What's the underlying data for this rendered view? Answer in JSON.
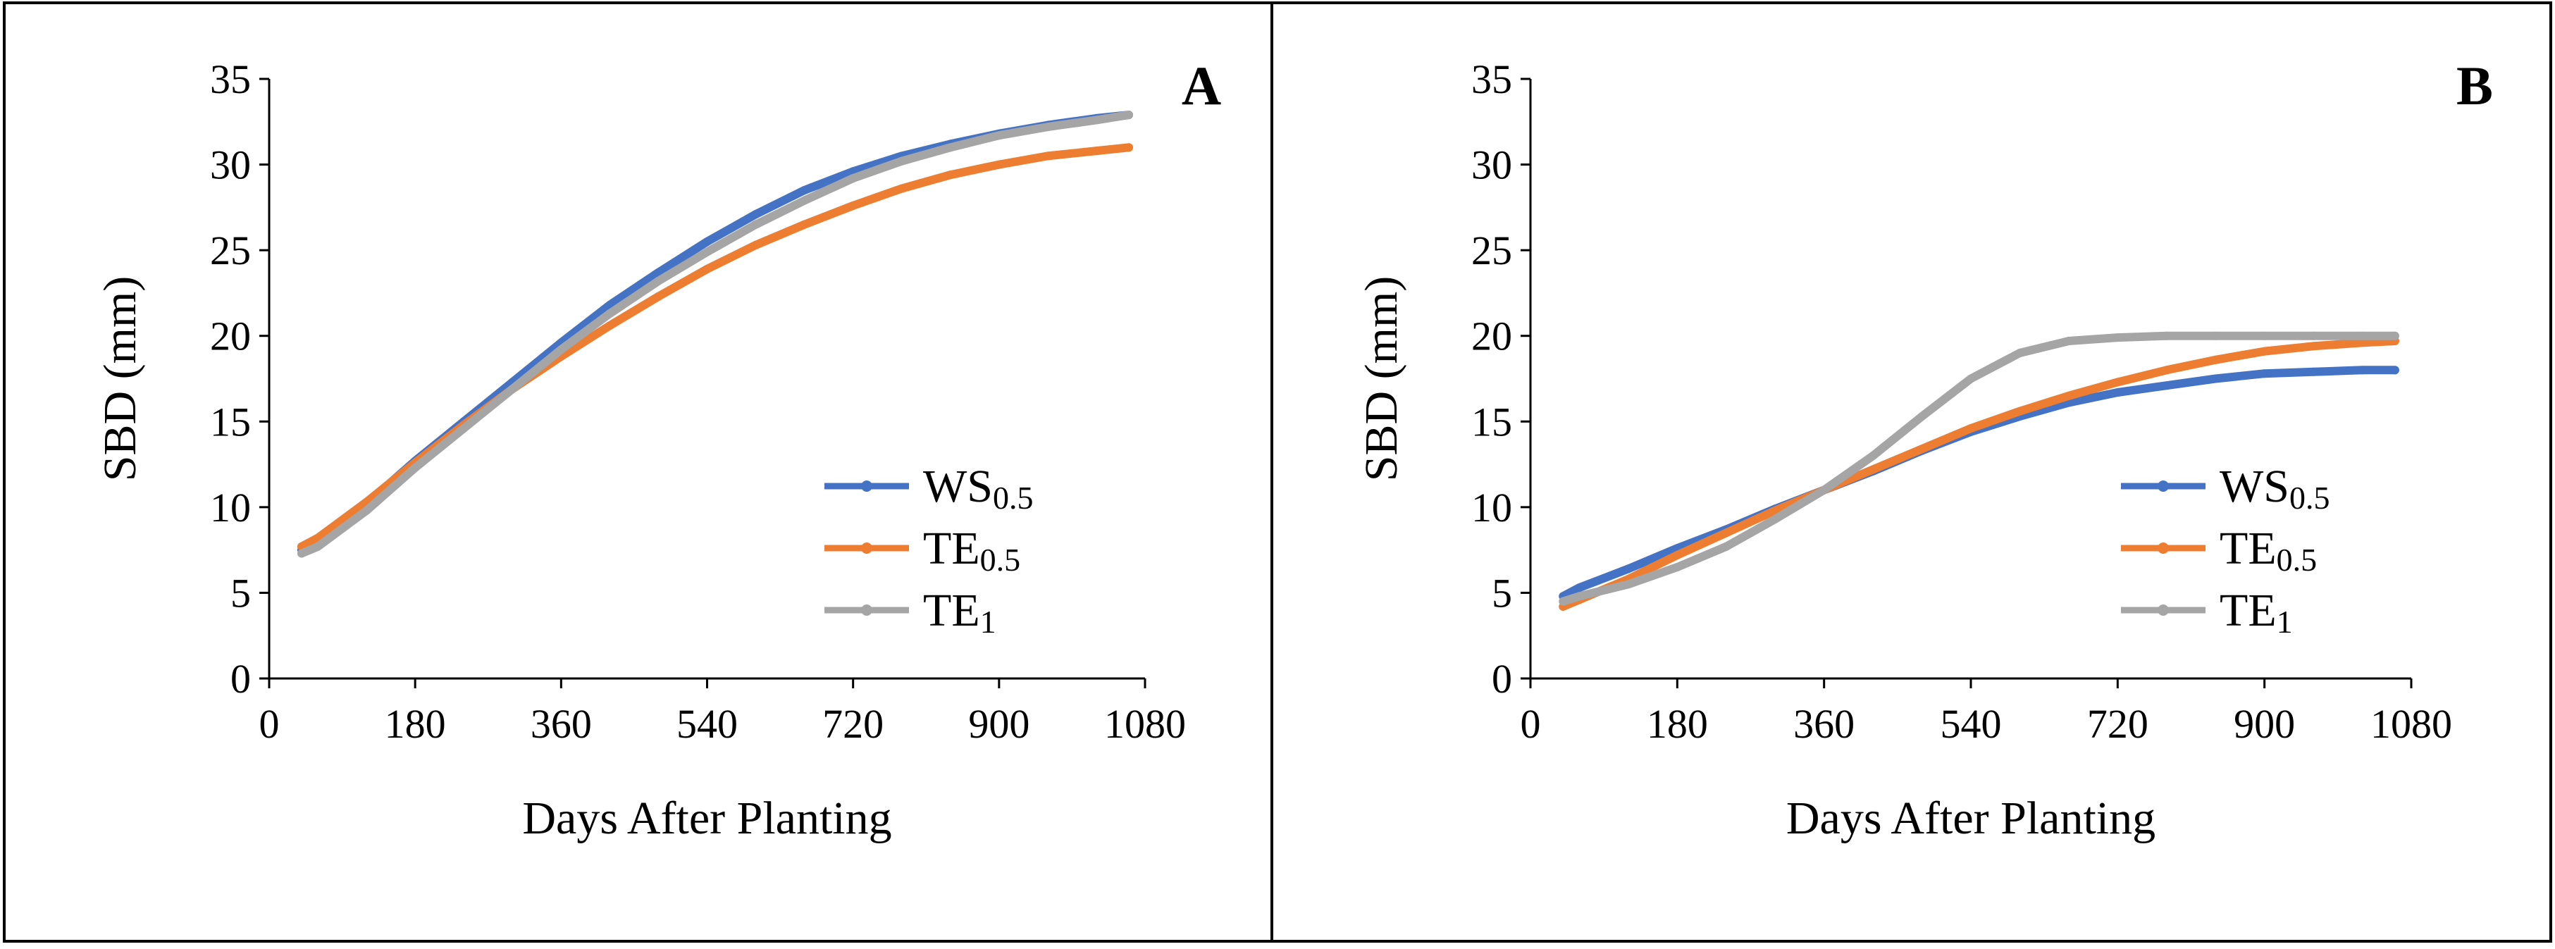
{
  "figure": {
    "panels": [
      "A",
      "B"
    ]
  },
  "colors": {
    "WS0.5": "#4472c4",
    "TE0.5": "#ed7d31",
    "TE1": "#a5a5a5",
    "frame": "#000000"
  },
  "chart_data": [
    {
      "type": "line",
      "panel_label": "A",
      "xlabel": "Days After Planting",
      "ylabel": "SBD (mm)",
      "xlim": [
        0,
        1080
      ],
      "ylim": [
        0,
        35
      ],
      "xticks": [
        0,
        180,
        360,
        540,
        720,
        900,
        1080
      ],
      "yticks": [
        0,
        5,
        10,
        15,
        20,
        25,
        30,
        35
      ],
      "grid": false,
      "legend_position": "bottom-right",
      "x": [
        40,
        60,
        120,
        180,
        240,
        300,
        360,
        420,
        480,
        540,
        600,
        660,
        720,
        780,
        840,
        900,
        960,
        1020,
        1060
      ],
      "series": [
        {
          "name": "WS0.5",
          "base": "WS",
          "sub": "0.5",
          "values": [
            7.5,
            8.0,
            10.2,
            12.7,
            15.0,
            17.3,
            19.6,
            21.8,
            23.7,
            25.5,
            27.1,
            28.5,
            29.6,
            30.5,
            31.2,
            31.8,
            32.3,
            32.7,
            32.9
          ]
        },
        {
          "name": "TE0.5",
          "base": "TE",
          "sub": "0.5",
          "values": [
            7.7,
            8.2,
            10.3,
            12.6,
            14.8,
            16.9,
            18.8,
            20.6,
            22.3,
            23.9,
            25.3,
            26.5,
            27.6,
            28.6,
            29.4,
            30.0,
            30.5,
            30.8,
            31.0
          ]
        },
        {
          "name": "TE1",
          "base": "TE",
          "sub": "1",
          "values": [
            7.3,
            7.7,
            9.8,
            12.3,
            14.6,
            16.9,
            19.2,
            21.3,
            23.2,
            24.9,
            26.5,
            27.9,
            29.2,
            30.2,
            31.0,
            31.7,
            32.2,
            32.6,
            32.9
          ]
        }
      ]
    },
    {
      "type": "line",
      "panel_label": "B",
      "xlabel": "Days After Planting",
      "ylabel": "SBD (mm)",
      "xlim": [
        0,
        1080
      ],
      "ylim": [
        0,
        35
      ],
      "xticks": [
        0,
        180,
        360,
        540,
        720,
        900,
        1080
      ],
      "yticks": [
        0,
        5,
        10,
        15,
        20,
        25,
        30,
        35
      ],
      "grid": false,
      "legend_position": "bottom-right",
      "x": [
        40,
        60,
        120,
        180,
        240,
        300,
        360,
        420,
        480,
        540,
        600,
        660,
        720,
        780,
        840,
        900,
        960,
        1020,
        1060
      ],
      "series": [
        {
          "name": "WS0.5",
          "base": "WS",
          "sub": "0.5",
          "values": [
            4.8,
            5.3,
            6.4,
            7.6,
            8.7,
            9.9,
            11.0,
            12.1,
            13.3,
            14.4,
            15.3,
            16.1,
            16.7,
            17.1,
            17.5,
            17.8,
            17.9,
            18.0,
            18.0
          ]
        },
        {
          "name": "TE0.5",
          "base": "TE",
          "sub": "0.5",
          "values": [
            4.2,
            4.6,
            5.8,
            7.2,
            8.5,
            9.8,
            11.0,
            12.2,
            13.4,
            14.6,
            15.6,
            16.5,
            17.3,
            18.0,
            18.6,
            19.1,
            19.4,
            19.6,
            19.7
          ]
        },
        {
          "name": "TE1",
          "base": "TE",
          "sub": "1",
          "values": [
            4.5,
            4.8,
            5.5,
            6.5,
            7.7,
            9.3,
            11.0,
            13.0,
            15.3,
            17.5,
            19.0,
            19.7,
            19.9,
            20.0,
            20.0,
            20.0,
            20.0,
            20.0,
            20.0
          ]
        }
      ]
    }
  ]
}
